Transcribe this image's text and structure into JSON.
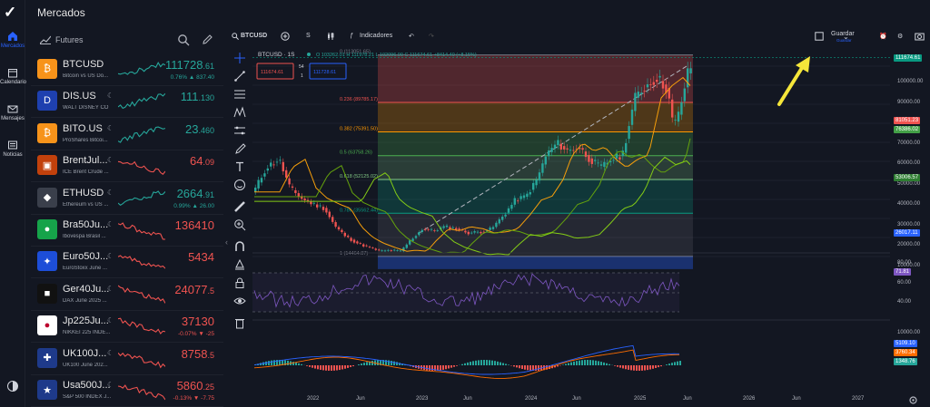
{
  "page_title": "Mercados",
  "nav": [
    {
      "label": "Mercados",
      "icon": "home-icon",
      "active": true
    },
    {
      "label": "Calendario",
      "icon": "calendar-icon",
      "active": false
    },
    {
      "label": "Mensajes",
      "icon": "mail-icon",
      "active": false
    },
    {
      "label": "Noticias",
      "icon": "news-icon",
      "active": false
    }
  ],
  "watchlist": {
    "title": "Futures",
    "items": [
      {
        "symbol": "BTCUSD",
        "desc": "Bitcoin vs US Do...",
        "price": "111728",
        "price_small": ".61",
        "change": "0.76% ▲ 837.40",
        "trend": "up",
        "logo_color": "#f7931a",
        "logo_text": "₿"
      },
      {
        "symbol": "DIS.US",
        "desc": "WALT DISNEY CO",
        "price": "111",
        "price_small": ".130",
        "change": "",
        "trend": "up",
        "logo_color": "#1e40af",
        "logo_text": "D"
      },
      {
        "symbol": "BITO.US",
        "desc": "ProShares Bitcoi...",
        "price": "23",
        "price_small": ".460",
        "change": "",
        "trend": "up",
        "logo_color": "#f7931a",
        "logo_text": "₿"
      },
      {
        "symbol": "BrentJul...",
        "desc": "ICE Brent Crude ...",
        "price": "64",
        "price_small": ".09",
        "change": "",
        "trend": "down",
        "logo_color": "#c2410c",
        "logo_text": "▣"
      },
      {
        "symbol": "ETHUSD",
        "desc": "Ethereum vs US ...",
        "price": "2664",
        "price_small": ".91",
        "change": "0.99% ▲ 26.00",
        "trend": "up",
        "logo_color": "#3a3f4b",
        "logo_text": "◆"
      },
      {
        "symbol": "Bra50Ju...",
        "desc": "Ibovespa Brasil ...",
        "price": "136410",
        "price_small": "",
        "change": "",
        "trend": "down",
        "logo_color": "#16a34a",
        "logo_text": "●"
      },
      {
        "symbol": "Euro50J...",
        "desc": "EuroStoxx June ...",
        "price": "5434",
        "price_small": "",
        "change": "",
        "trend": "down",
        "logo_color": "#1d4ed8",
        "logo_text": "✦"
      },
      {
        "symbol": "Ger40Ju...",
        "desc": "DAX June 2025 ...",
        "price": "24077",
        "price_small": ".5",
        "change": "",
        "trend": "down",
        "logo_color": "#111111",
        "logo_text": "■"
      },
      {
        "symbol": "Jp225Ju...",
        "desc": "NIKKEI 225 INDE...",
        "price": "37130",
        "price_small": "",
        "change": "-0.07% ▼ -25",
        "trend": "down",
        "logo_color": "#ffffff",
        "logo_text": "●"
      },
      {
        "symbol": "UK100J...",
        "desc": "UK100 June 202...",
        "price": "8758",
        "price_small": ".5",
        "change": "",
        "trend": "down",
        "logo_color": "#1e3a8a",
        "logo_text": "✚"
      },
      {
        "symbol": "Usa500J...",
        "desc": "S&P 500 INDEX J...",
        "price": "5860",
        "price_small": ".25",
        "change": "-0.13% ▼ -7.75",
        "trend": "down",
        "logo_color": "#1e3a8a",
        "logo_text": "★"
      }
    ]
  },
  "toolbar": {
    "symbol": "BTCUSD",
    "interval": "S",
    "indicators": "Indicadores",
    "save": "Guardar",
    "save_sub": "Guardar"
  },
  "legend": {
    "title": "BTCUSD · 1S",
    "ohlc": "O 103262.01  H 111978.21  L 102096.00  C 111674.61  +8414.40 (+8.15%)",
    "sell": "111674.61",
    "buy": "111728.61",
    "spread_a": "54",
    "spread_b": "1"
  },
  "fib_levels": [
    {
      "label": "0 (113051.65)",
      "value": 113051.65,
      "color": "#787b86"
    },
    {
      "label": "0.236 (89785.17)",
      "value": 89785.17,
      "color": "#ef5350"
    },
    {
      "label": "0.382 (75391.50)",
      "value": 75391.5,
      "color": "#ff9800"
    },
    {
      "label": "0.5 (63758.26)",
      "value": 63758.26,
      "color": "#4caf50"
    },
    {
      "label": "0.618 (52125.02)",
      "value": 52125.02,
      "color": "#81c784"
    },
    {
      "label": "0.786 (35562.44)",
      "value": 35562.44,
      "color": "#089981"
    },
    {
      "label": "1 (14464.87)",
      "value": 14464.87,
      "color": "#787b86"
    }
  ],
  "price_scale": [
    "100000.00",
    "90000.00",
    "80000.00",
    "70000.00",
    "60000.00",
    "50000.00",
    "40000.00",
    "30000.00",
    "20000.00",
    "10000.00"
  ],
  "price_tags": [
    {
      "text": "111674.61",
      "color": "#089981"
    },
    {
      "text": "81051.23",
      "color": "#ef5350"
    },
    {
      "text": "76386.02",
      "color": "#43a047"
    },
    {
      "text": "53006.57",
      "color": "#2e7d32"
    },
    {
      "text": "26017.11",
      "color": "#2962ff"
    }
  ],
  "rsi_scale": [
    "80.00",
    "60.00",
    "40.00"
  ],
  "rsi_tag": "71.81",
  "macd_scale": [
    "10000.00"
  ],
  "macd_tags": [
    {
      "text": "5109.10",
      "color": "#2962ff"
    },
    {
      "text": "3760.34",
      "color": "#ff6d00"
    },
    {
      "text": "1348.76",
      "color": "#26a69a"
    }
  ],
  "x_axis": [
    "2022",
    "Jun",
    "2023",
    "Jun",
    "2024",
    "Jun",
    "2025",
    "Jun",
    "2026",
    "Jun",
    "2027"
  ]
}
